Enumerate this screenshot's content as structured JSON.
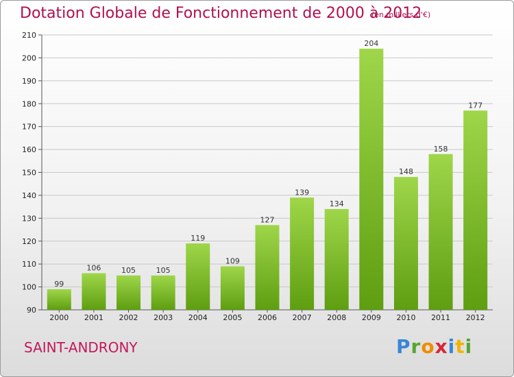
{
  "header": {
    "title": "Dotation Globale de Fonctionnement de 2000 à 2012",
    "unit": "(en milliers d'€)"
  },
  "footer": {
    "commune": "SAINT-ANDRONY",
    "logo_letters": [
      "P",
      "r",
      "o",
      "x",
      "i",
      "t",
      "i"
    ]
  },
  "colors": {
    "bar_light": "#9fd64a",
    "bar_dark": "#5e9e10",
    "title": "#b0104f",
    "grid": "#c8c8c8"
  },
  "chart_data": {
    "type": "bar",
    "title": "Dotation Globale de Fonctionnement de 2000 à 2012",
    "subtitle": "(en milliers d'€)",
    "categories": [
      "2000",
      "2001",
      "2002",
      "2003",
      "2004",
      "2005",
      "2006",
      "2007",
      "2008",
      "2009",
      "2010",
      "2011",
      "2012"
    ],
    "values": [
      99,
      106,
      105,
      105,
      119,
      109,
      127,
      139,
      134,
      204,
      148,
      158,
      177
    ],
    "ylim": [
      90,
      210
    ],
    "yticks": [
      90,
      100,
      110,
      120,
      130,
      140,
      150,
      160,
      170,
      180,
      190,
      200,
      210
    ],
    "grid": true,
    "data_labels": true
  }
}
